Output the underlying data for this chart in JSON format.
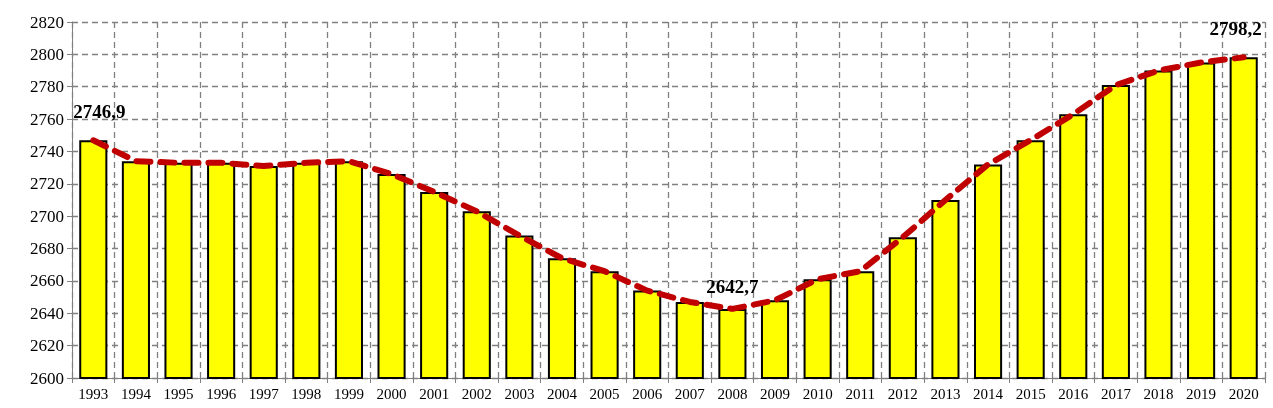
{
  "chart_data": {
    "type": "bar",
    "categories": [
      "1993",
      "1994",
      "1995",
      "1996",
      "1997",
      "1998",
      "1999",
      "2000",
      "2001",
      "2002",
      "2003",
      "2004",
      "2005",
      "2006",
      "2007",
      "2008",
      "2009",
      "2010",
      "2011",
      "2012",
      "2013",
      "2014",
      "2015",
      "2016",
      "2017",
      "2018",
      "2019",
      "2020"
    ],
    "series": [
      {
        "color": "#ffff00",
        "values": [
          2746.9,
          2734,
          2733,
          2733,
          2731,
          2733,
          2734,
          2726,
          2715,
          2703,
          2688,
          2674,
          2666,
          2654,
          2647,
          2642.7,
          2648,
          2661,
          2666,
          2687,
          2710,
          2732,
          2747,
          2763,
          2781,
          2790,
          2795,
          2798.2
        ],
        "value_labels": [
          "2746,9",
          null,
          null,
          null,
          null,
          null,
          null,
          null,
          null,
          null,
          null,
          null,
          null,
          null,
          null,
          "2642,7",
          null,
          null,
          null,
          null,
          null,
          null,
          null,
          null,
          null,
          null,
          null,
          "2798,2"
        ]
      },
      {
        "type": "line",
        "color": "#c00000",
        "line_style": "dashed",
        "marker": "none",
        "values": [
          2746.9,
          2734,
          2733,
          2733,
          2731,
          2733,
          2734,
          2726,
          2715,
          2703,
          2688,
          2674,
          2666,
          2654,
          2647,
          2642.7,
          2648,
          2661,
          2666,
          2687,
          2710,
          2732,
          2747,
          2763,
          2781,
          2790,
          2795,
          2798.2
        ]
      }
    ],
    "ylim": [
      2600,
      2820
    ],
    "yticks": [
      2600,
      2620,
      2640,
      2660,
      2680,
      2700,
      2720,
      2740,
      2760,
      2780,
      2800,
      2820
    ],
    "grid": true
  }
}
